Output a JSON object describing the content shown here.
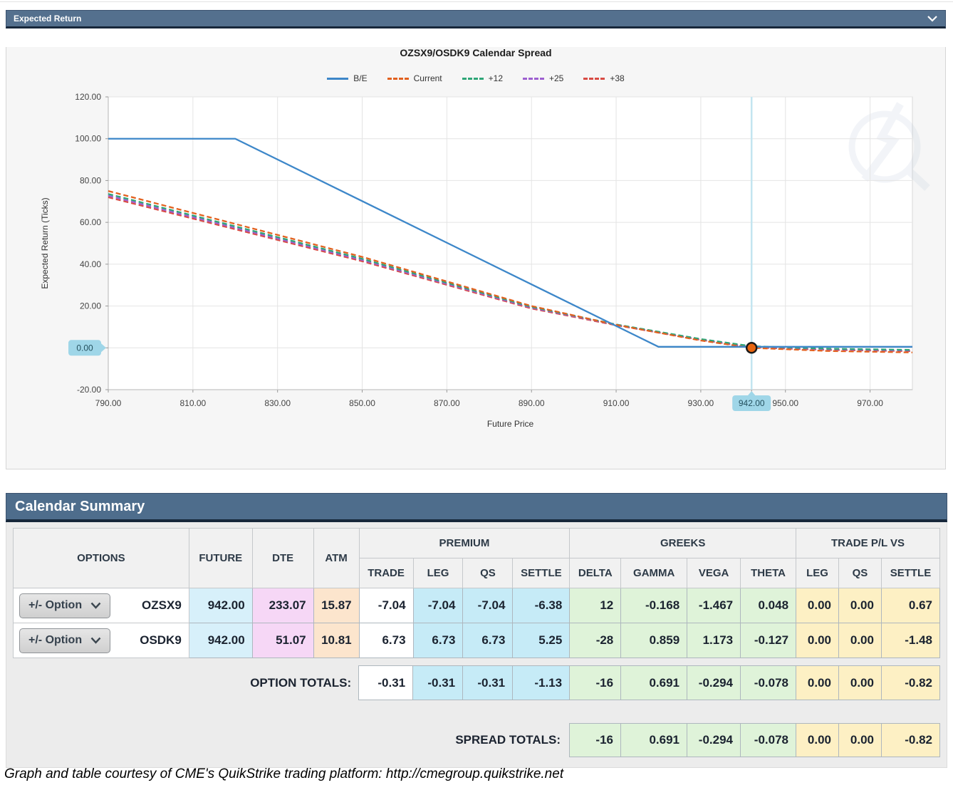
{
  "expected_return": {
    "title": "Expected Return"
  },
  "chart_data": {
    "type": "line",
    "title": "OZSX9/OSDK9 Calendar Spread",
    "xlabel": "Future Price",
    "ylabel": "Expected Return (Ticks)",
    "xlim": [
      790,
      980
    ],
    "ylim": [
      -20,
      120
    ],
    "grid": true,
    "legend_position": "top-center",
    "yticks": [
      {
        "v": 120,
        "label": "120.00"
      },
      {
        "v": 100,
        "label": "100.00"
      },
      {
        "v": 80,
        "label": "80.00"
      },
      {
        "v": 60,
        "label": "60.00"
      },
      {
        "v": 40,
        "label": "40.00"
      },
      {
        "v": 20,
        "label": "20.00"
      },
      {
        "v": 0,
        "label": "0.00",
        "highlight": true
      },
      {
        "v": -20,
        "label": "-20.00"
      }
    ],
    "xticks": [
      {
        "v": 790,
        "label": "790.00"
      },
      {
        "v": 810,
        "label": "810.00"
      },
      {
        "v": 830,
        "label": "830.00"
      },
      {
        "v": 850,
        "label": "850.00"
      },
      {
        "v": 870,
        "label": "870.00"
      },
      {
        "v": 890,
        "label": "890.00"
      },
      {
        "v": 910,
        "label": "910.00"
      },
      {
        "v": 930,
        "label": "930.00"
      },
      {
        "v": 942,
        "label": "942.00",
        "highlight": true
      },
      {
        "v": 950,
        "label": "950.00"
      },
      {
        "v": 970,
        "label": "970.00"
      }
    ],
    "crosshair_x": 942,
    "marker": {
      "x": 942,
      "y": 0,
      "color": "#e8650f"
    },
    "series": [
      {
        "name": "B/E",
        "color": "#3d87c9",
        "dash": false,
        "points": [
          [
            790,
            100
          ],
          [
            820,
            100
          ],
          [
            920,
            0.5
          ],
          [
            980,
            0.5
          ]
        ]
      },
      {
        "name": "Current",
        "color": "#e2611f",
        "dash": true,
        "points": [
          [
            790,
            75
          ],
          [
            850,
            43.5
          ],
          [
            890,
            20
          ],
          [
            910,
            11
          ],
          [
            930,
            3.5
          ],
          [
            942,
            0
          ],
          [
            960,
            -1.5
          ],
          [
            980,
            -2.2
          ]
        ]
      },
      {
        "name": "+12",
        "color": "#2fa678",
        "dash": true,
        "points": [
          [
            790,
            73.6
          ],
          [
            850,
            42.6
          ],
          [
            890,
            19.6
          ],
          [
            910,
            11.2
          ],
          [
            930,
            4.2
          ],
          [
            942,
            0.8
          ],
          [
            960,
            -0.4
          ],
          [
            980,
            -1.0
          ]
        ]
      },
      {
        "name": "+25",
        "color": "#9d5fd0",
        "dash": true,
        "points": [
          [
            790,
            72.8
          ],
          [
            850,
            42.0
          ],
          [
            890,
            19.2
          ],
          [
            910,
            11.0
          ],
          [
            930,
            4.0
          ],
          [
            942,
            0.5
          ],
          [
            960,
            -0.7
          ],
          [
            980,
            -1.3
          ]
        ]
      },
      {
        "name": "+38",
        "color": "#d84b44",
        "dash": true,
        "points": [
          [
            790,
            72.0
          ],
          [
            850,
            41.4
          ],
          [
            890,
            18.8
          ],
          [
            910,
            10.8
          ],
          [
            930,
            3.8
          ],
          [
            942,
            0.2
          ],
          [
            960,
            -1.0
          ],
          [
            980,
            -1.6
          ]
        ]
      }
    ],
    "highlight_badge_color": "#9fd6e8"
  },
  "summary": {
    "title": "Calendar Summary",
    "headers": {
      "options": "OPTIONS",
      "future": "FUTURE",
      "dte": "DTE",
      "atm": "ATM",
      "premium": "PREMIUM",
      "greeks": "GREEKS",
      "trade_pl": "TRADE P/L VS",
      "trade": "TRADE",
      "leg": "LEG",
      "qs": "QS",
      "settle": "SETTLE",
      "delta": "DELTA",
      "gamma": "GAMMA",
      "vega": "VEGA",
      "theta": "THETA",
      "pl_leg": "LEG",
      "pl_qs": "QS",
      "pl_settle": "SETTLE"
    },
    "rows": [
      {
        "option_button": "+/- Option",
        "symbol": "OZSX9",
        "future": "942.00",
        "dte": "233.07",
        "atm": "15.87",
        "trade": "-7.04",
        "leg": "-7.04",
        "qs": "-7.04",
        "settle": "-6.38",
        "delta": "12",
        "gamma": "-0.168",
        "vega": "-1.467",
        "theta": "0.048",
        "pl_leg": "0.00",
        "pl_qs": "0.00",
        "pl_settle": "0.67"
      },
      {
        "option_button": "+/- Option",
        "symbol": "OSDK9",
        "future": "942.00",
        "dte": "51.07",
        "atm": "10.81",
        "trade": "6.73",
        "leg": "6.73",
        "qs": "6.73",
        "settle": "5.25",
        "delta": "-28",
        "gamma": "0.859",
        "vega": "1.173",
        "theta": "-0.127",
        "pl_leg": "0.00",
        "pl_qs": "0.00",
        "pl_settle": "-1.48"
      }
    ],
    "option_totals": {
      "label": "OPTION TOTALS:",
      "trade": "-0.31",
      "leg": "-0.31",
      "qs": "-0.31",
      "settle": "-1.13",
      "delta": "-16",
      "gamma": "0.691",
      "vega": "-0.294",
      "theta": "-0.078",
      "pl_leg": "0.00",
      "pl_qs": "0.00",
      "pl_settle": "-0.82"
    },
    "spread_totals": {
      "label": "SPREAD TOTALS:",
      "delta": "-16",
      "gamma": "0.691",
      "vega": "-0.294",
      "theta": "-0.078",
      "pl_leg": "0.00",
      "pl_qs": "0.00",
      "pl_settle": "-0.82"
    }
  },
  "caption": "Graph and table courtesy of CME's QuikStrike trading platform: http://cmegroup.quikstrike.net"
}
